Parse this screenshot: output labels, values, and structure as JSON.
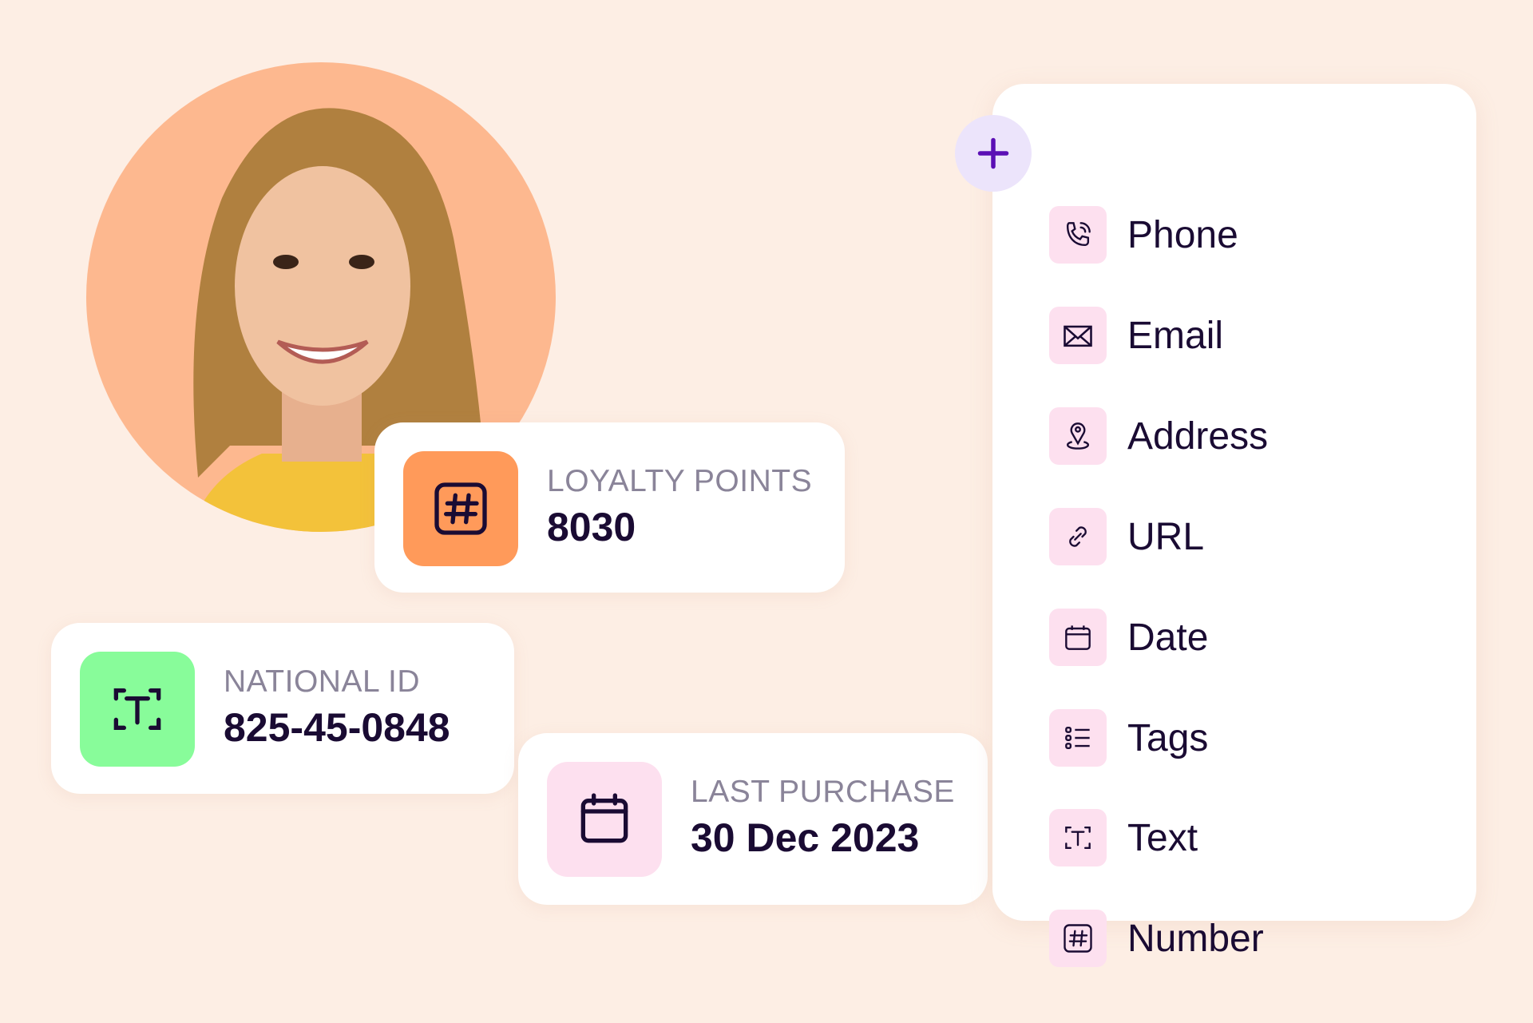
{
  "colors": {
    "background": "#fdeee4",
    "accent": "#5b0fb5",
    "orange": "#ff9a5a",
    "green": "#88fc9a",
    "pink": "#fde0ef"
  },
  "cards": [
    {
      "label": "LOYALTY POINTS",
      "value": "8030",
      "icon": "hash-icon"
    },
    {
      "label": "NATIONAL ID",
      "value": "825-45-0848",
      "icon": "text-icon"
    },
    {
      "label": "LAST PURCHASE",
      "value": "30 Dec 2023",
      "icon": "calendar-icon"
    }
  ],
  "menu": {
    "add_icon": "plus-icon",
    "items": [
      {
        "label": "Phone",
        "icon": "phone-icon"
      },
      {
        "label": "Email",
        "icon": "email-icon"
      },
      {
        "label": "Address",
        "icon": "location-pin-icon"
      },
      {
        "label": "URL",
        "icon": "link-icon"
      },
      {
        "label": "Date",
        "icon": "calendar-icon"
      },
      {
        "label": "Tags",
        "icon": "list-icon"
      },
      {
        "label": "Text",
        "icon": "text-icon"
      },
      {
        "label": "Number",
        "icon": "hash-icon"
      }
    ]
  }
}
